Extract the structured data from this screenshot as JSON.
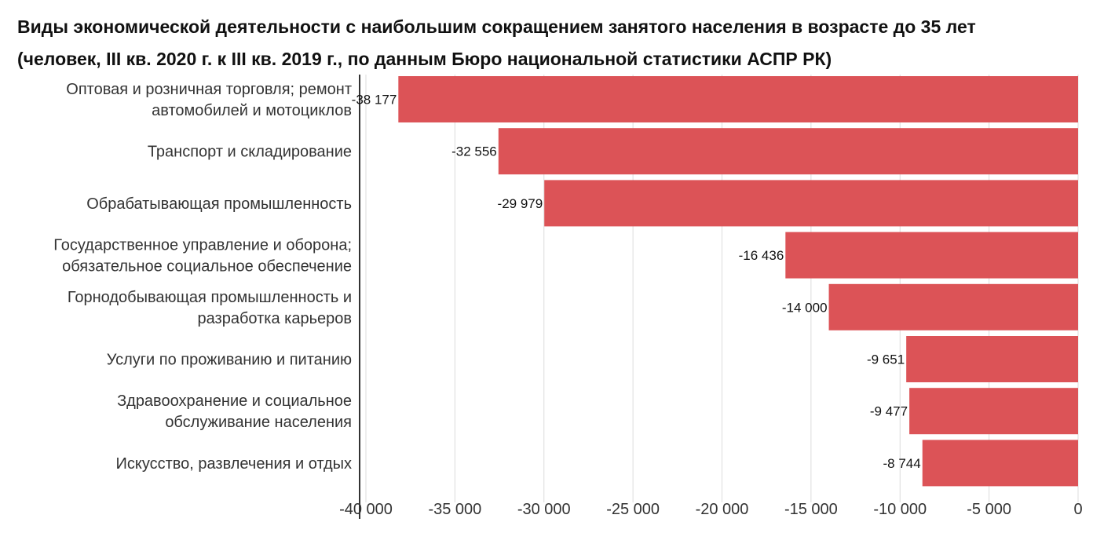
{
  "chart_data": {
    "type": "bar",
    "orientation": "horizontal",
    "title": "Виды экономической деятельности с наибольшим сокращением занятого населения в возрасте до 35 лет",
    "subtitle": "(человек, III кв. 2020 г. к III кв. 2019 г., по данным Бюро национальной статистики АСПР РК)",
    "categories": [
      [
        "Оптовая и розничная торговля; ремонт",
        "автомобилей и мотоциклов"
      ],
      [
        "Транспорт и складирование"
      ],
      [
        "Обрабатывающая промышленность"
      ],
      [
        "Государственное управление и оборона;",
        "обязательное социальное обеспечение"
      ],
      [
        "Горнодобывающая промышленность и",
        "разработка карьеров"
      ],
      [
        "Услуги по проживанию и питанию"
      ],
      [
        "Здравоохранение и социальное",
        "обслуживание населения"
      ],
      [
        "Искусство, развлечения и отдых"
      ]
    ],
    "values": [
      -38177,
      -32556,
      -29979,
      -16436,
      -14000,
      -9651,
      -9477,
      -8744
    ],
    "data_labels": [
      "-38 177",
      "-32 556",
      "-29 979",
      "-16 436",
      "-14 000",
      "-9 651",
      "-9 477",
      "-8 744"
    ],
    "xlim": [
      -40000,
      0
    ],
    "ticks": [
      -40000,
      -35000,
      -30000,
      -25000,
      -20000,
      -15000,
      -10000,
      -5000,
      0
    ],
    "tick_labels": [
      "-40 000",
      "-35 000",
      "-30 000",
      "-25 000",
      "-20 000",
      "-15 000",
      "-10 000",
      "-5 000",
      "0"
    ],
    "xlabel": "",
    "ylabel": "",
    "grid": true,
    "legend": "none",
    "colors": {
      "bar": "#dc5357",
      "grid": "#dcdcdc",
      "axis": "#333333"
    }
  }
}
